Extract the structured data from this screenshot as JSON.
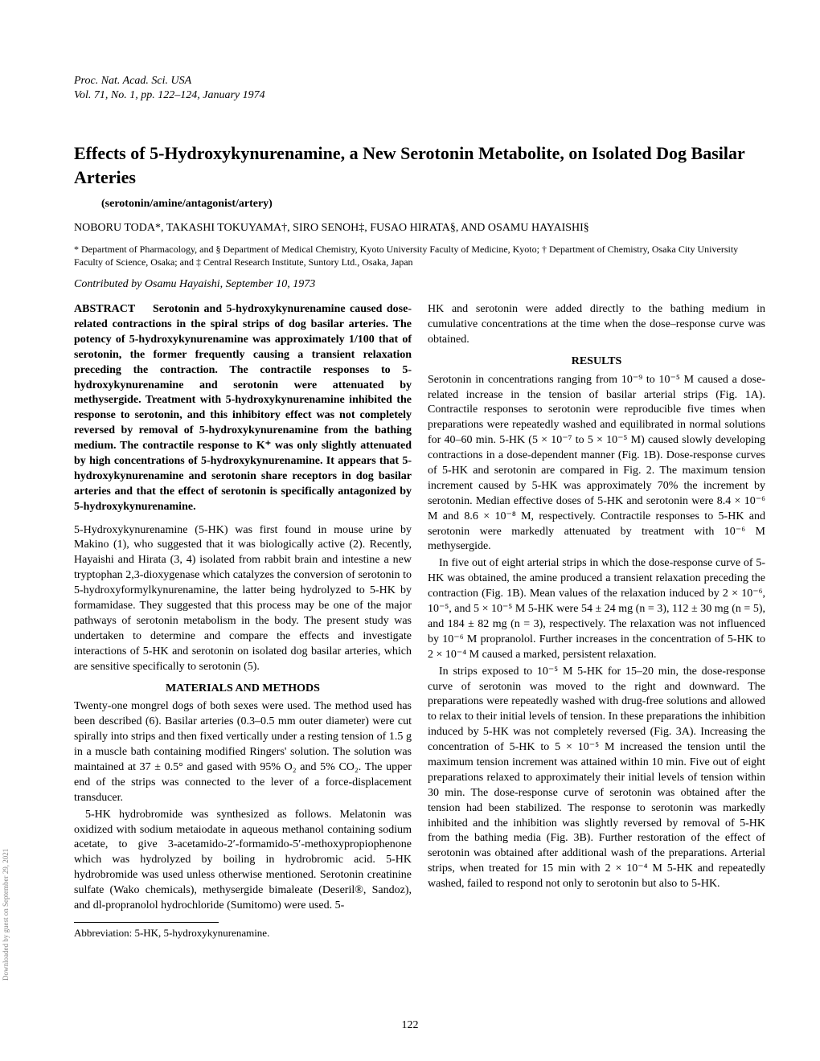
{
  "journal": {
    "name": "Proc. Nat. Acad. Sci. USA",
    "volume": "Vol. 71, No. 1, pp. 122–124, January 1974"
  },
  "title": "Effects of 5-Hydroxykynurenamine, a New Serotonin Metabolite, on Isolated Dog Basilar Arteries",
  "keywords": "(serotonin/amine/antagonist/artery)",
  "authors": "NOBORU TODA*, TAKASHI TOKUYAMA†, SIRO SENOH‡, FUSAO HIRATA§, AND OSAMU HAYAISHI§",
  "affiliations": "* Department of Pharmacology, and § Department of Medical Chemistry, Kyoto University Faculty of Medicine, Kyoto; † Department of Chemistry, Osaka City University Faculty of Science, Osaka; and ‡ Central Research Institute, Suntory Ltd., Osaka, Japan",
  "contributed": "Contributed by Osamu Hayaishi, September 10, 1973",
  "abstract": {
    "label": "ABSTRACT",
    "text": "Serotonin and 5-hydroxykynurenamine caused dose-related contractions in the spiral strips of dog basilar arteries. The potency of 5-hydroxykynurenamine was approximately 1/100 that of serotonin, the former frequently causing a transient relaxation preceding the contraction. The contractile responses to 5-hydroxykynurenamine and serotonin were attenuated by methysergide. Treatment with 5-hydroxykynurenamine inhibited the response to serotonin, and this inhibitory effect was not completely reversed by removal of 5-hydroxykynurenamine from the bathing medium. The contractile response to K⁺ was only slightly attenuated by high concentrations of 5-hydroxykynurenamine. It appears that 5-hydroxykynurenamine and serotonin share receptors in dog basilar arteries and that the effect of serotonin is specifically antagonized by 5-hydroxykynurenamine."
  },
  "intro_p1": "5-Hydroxykynurenamine (5-HK) was first found in mouse urine by Makino (1), who suggested that it was biologically active (2). Recently, Hayaishi and Hirata (3, 4) isolated from rabbit brain and intestine a new tryptophan 2,3-dioxygenase which catalyzes the conversion of serotonin to 5-hydroxyformylkynurenamine, the latter being hydrolyzed to 5-HK by formamidase. They suggested that this process may be one of the major pathways of serotonin metabolism in the body. The present study was undertaken to determine and compare the effects and investigate interactions of 5-HK and serotonin on isolated dog basilar arteries, which are sensitive specifically to serotonin (5).",
  "materials_heading": "MATERIALS AND METHODS",
  "materials_p1": "Twenty-one mongrel dogs of both sexes were used. The method used has been described (6). Basilar arteries (0.3–0.5 mm outer diameter) were cut spirally into strips and then fixed vertically under a resting tension of 1.5 g in a muscle bath containing modified Ringers' solution. The solution was maintained at 37 ± 0.5° and gased with 95% O₂ and 5% CO₂. The upper end of the strips was connected to the lever of a force-displacement transducer.",
  "materials_p2": "5-HK hydrobromide was synthesized as follows. Melatonin was oxidized with sodium metaiodate in aqueous methanol containing sodium acetate, to give 3-acetamido-2′-formamido-5′-methoxypropiophenone which was hydrolyzed by boiling in hydrobromic acid. 5-HK hydrobromide was used unless otherwise mentioned. Serotonin creatinine sulfate (Wako chemicals), methysergide bimaleate (Deseril®, Sandoz), and dl-propranolol hydrochloride (Sumitomo) were used. 5-",
  "abbreviation": "Abbreviation: 5-HK, 5-hydroxykynurenamine.",
  "right_p1": "HK and serotonin were added directly to the bathing medium in cumulative concentrations at the time when the dose–response curve was obtained.",
  "results_heading": "RESULTS",
  "results_p1": "Serotonin in concentrations ranging from 10⁻⁹ to 10⁻⁵ M caused a dose-related increase in the tension of basilar arterial strips (Fig. 1A). Contractile responses to serotonin were reproducible five times when preparations were repeatedly washed and equilibrated in normal solutions for 40–60 min. 5-HK (5 × 10⁻⁷ to 5 × 10⁻⁵ M) caused slowly developing contractions in a dose-dependent manner (Fig. 1B). Dose-response curves of 5-HK and serotonin are compared in Fig. 2. The maximum tension increment caused by 5-HK was approximately 70% the increment by serotonin. Median effective doses of 5-HK and serotonin were 8.4 × 10⁻⁶ M and 8.6 × 10⁻⁸ M, respectively. Contractile responses to 5-HK and serotonin were markedly attenuated by treatment with 10⁻⁶ M methysergide.",
  "results_p2": "In five out of eight arterial strips in which the dose-response curve of 5-HK was obtained, the amine produced a transient relaxation preceding the contraction (Fig. 1B). Mean values of the relaxation induced by 2 × 10⁻⁶, 10⁻⁵, and 5 × 10⁻⁵ M 5-HK were 54 ± 24 mg (n = 3), 112 ± 30 mg (n = 5), and 184 ± 82 mg (n = 3), respectively. The relaxation was not influenced by 10⁻⁶ M propranolol. Further increases in the concentration of 5-HK to 2 × 10⁻⁴ M caused a marked, persistent relaxation.",
  "results_p3": "In strips exposed to 10⁻⁵ M 5-HK for 15–20 min, the dose-response curve of serotonin was moved to the right and downward. The preparations were repeatedly washed with drug-free solutions and allowed to relax to their initial levels of tension. In these preparations the inhibition induced by 5-HK was not completely reversed (Fig. 3A). Increasing the concentration of 5-HK to 5 × 10⁻⁵ M increased the tension until the maximum tension increment was attained within 10 min. Five out of eight preparations relaxed to approximately their initial levels of tension within 30 min. The dose-response curve of serotonin was obtained after the tension had been stabilized. The response to serotonin was markedly inhibited and the inhibition was slightly reversed by removal of 5-HK from the bathing media (Fig. 3B). Further restoration of the effect of serotonin was obtained after additional wash of the preparations. Arterial strips, when treated for 15 min with 2 × 10⁻⁴ M 5-HK and repeatedly washed, failed to respond not only to serotonin but also to 5-HK.",
  "page_number": "122",
  "side_text": "Downloaded by guest on September 29, 2021"
}
